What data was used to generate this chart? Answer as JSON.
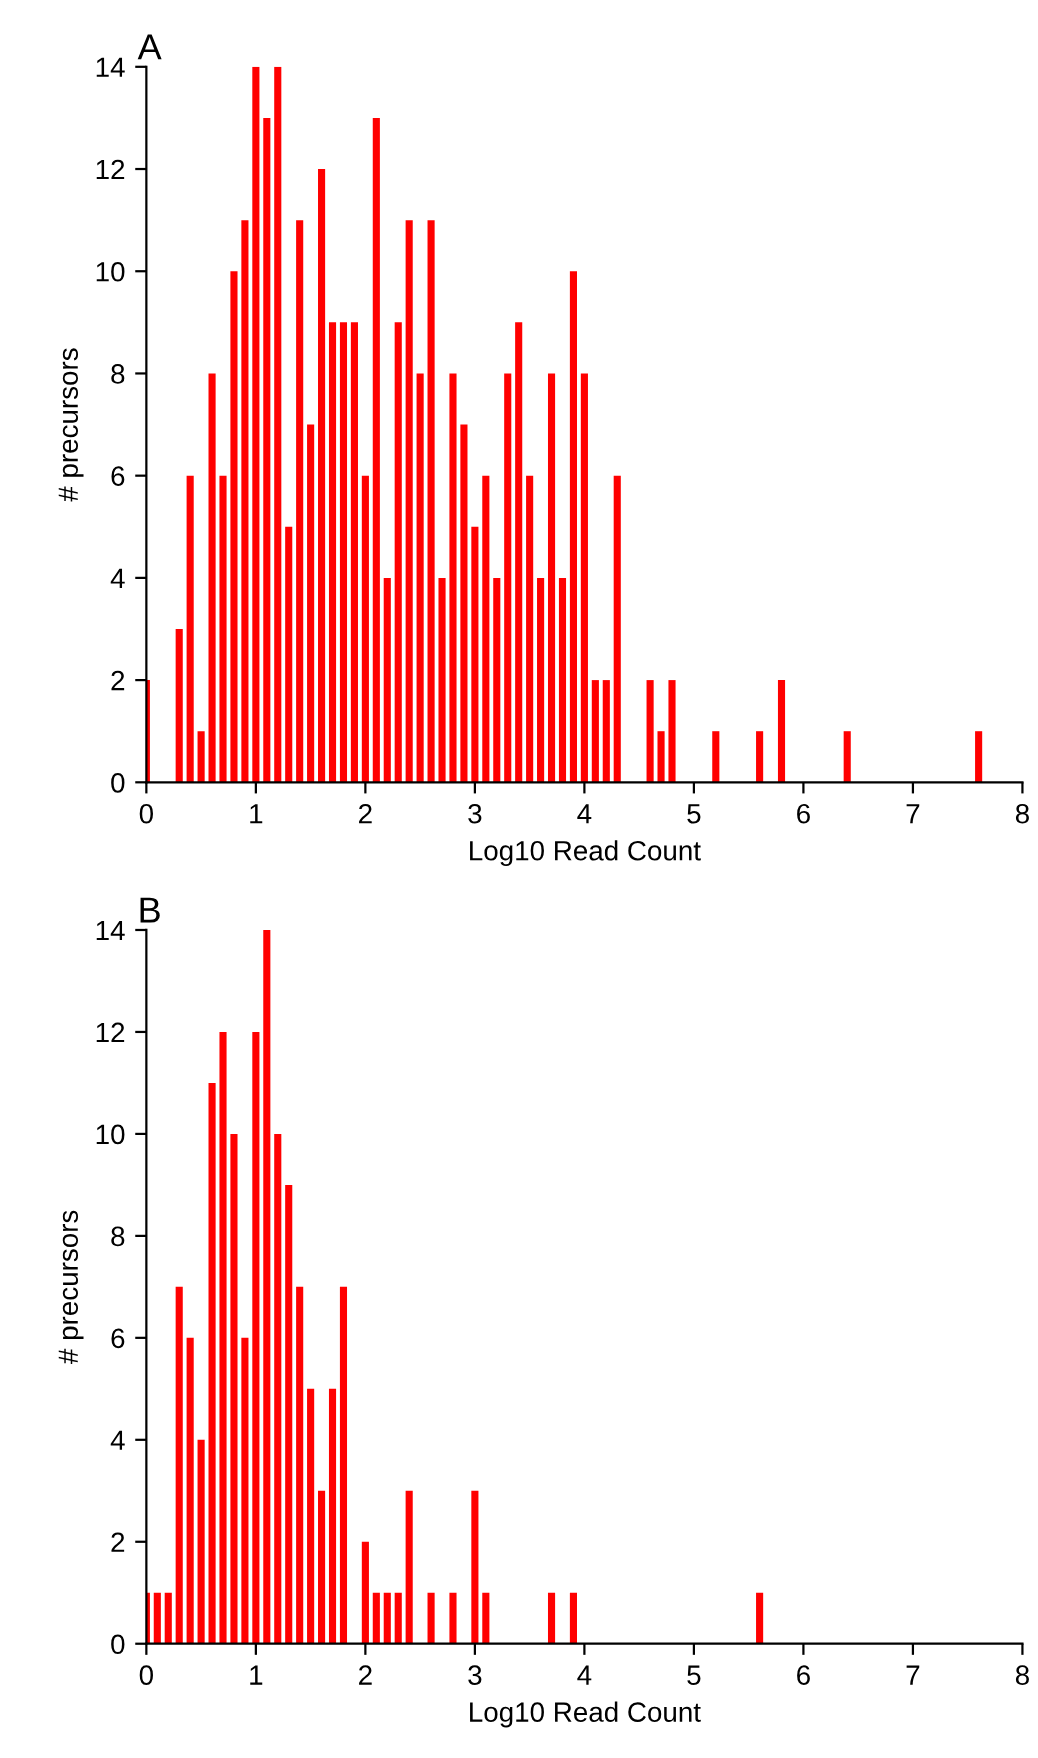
{
  "chart_data": [
    {
      "type": "histogram",
      "title": "A",
      "xlabel": "Log10 Read Count",
      "ylabel": "# precursors",
      "xlim": [
        0,
        8
      ],
      "xticks": [
        0,
        1,
        2,
        3,
        4,
        5,
        6,
        7,
        8
      ],
      "ylim": [
        0,
        14
      ],
      "yticks": [
        0,
        2,
        4,
        6,
        8,
        10,
        12,
        14
      ],
      "color": "#ff0000",
      "bins": [
        -0.05,
        0.05,
        0.15,
        0.25,
        0.35,
        0.45,
        0.55,
        0.65,
        0.75,
        0.85,
        0.95,
        1.05,
        1.15,
        1.25,
        1.35,
        1.45,
        1.55,
        1.65,
        1.75,
        1.85,
        1.95,
        2.05,
        2.15,
        2.25,
        2.35,
        2.45,
        2.55,
        2.65,
        2.75,
        2.85,
        2.95,
        3.05,
        3.15,
        3.25,
        3.35,
        3.45,
        3.55,
        3.65,
        3.75,
        3.85,
        3.95,
        4.05,
        4.15,
        4.25,
        4.35,
        4.45,
        4.55,
        4.65,
        4.75,
        4.85,
        4.95,
        5.05,
        5.15,
        5.25,
        5.35,
        5.45,
        5.55,
        5.65,
        5.75,
        5.85,
        5.95,
        6.05,
        6.15,
        6.25,
        6.35,
        6.45,
        6.55,
        6.65,
        6.75,
        6.85,
        6.95,
        7.05,
        7.15,
        7.25,
        7.35,
        7.45,
        7.55,
        7.65
      ],
      "values": [
        2,
        0,
        0,
        3,
        6,
        1,
        8,
        6,
        10,
        11,
        14,
        13,
        14,
        5,
        11,
        7,
        12,
        9,
        9,
        9,
        6,
        13,
        4,
        9,
        11,
        8,
        11,
        4,
        8,
        7,
        5,
        6,
        4,
        8,
        9,
        6,
        4,
        8,
        4,
        10,
        8,
        2,
        2,
        6,
        0,
        0,
        2,
        1,
        2,
        0,
        0,
        0,
        1,
        0,
        0,
        0,
        1,
        0,
        2,
        0,
        0,
        0,
        0,
        0,
        1,
        0,
        0,
        0,
        0,
        0,
        0,
        0,
        0,
        0,
        0,
        0,
        1
      ]
    },
    {
      "type": "histogram",
      "title": "B",
      "xlabel": "Log10 Read Count",
      "ylabel": "# precursors",
      "xlim": [
        0,
        8
      ],
      "xticks": [
        0,
        1,
        2,
        3,
        4,
        5,
        6,
        7,
        8
      ],
      "ylim": [
        0,
        14
      ],
      "yticks": [
        0,
        2,
        4,
        6,
        8,
        10,
        12,
        14
      ],
      "color": "#ff0000",
      "bins": [
        -0.05,
        0.05,
        0.15,
        0.25,
        0.35,
        0.45,
        0.55,
        0.65,
        0.75,
        0.85,
        0.95,
        1.05,
        1.15,
        1.25,
        1.35,
        1.45,
        1.55,
        1.65,
        1.75,
        1.85,
        1.95,
        2.05,
        2.15,
        2.25,
        2.35,
        2.45,
        2.55,
        2.65,
        2.75,
        2.85,
        2.95,
        3.05,
        3.15,
        3.25,
        3.35,
        3.45,
        3.55,
        3.65,
        3.75,
        3.85,
        3.95,
        4.05,
        4.15,
        4.25,
        4.35,
        4.45,
        4.55,
        4.65,
        4.75,
        4.85,
        4.95,
        5.05,
        5.15,
        5.25,
        5.35,
        5.45,
        5.55,
        5.65
      ],
      "values": [
        1,
        1,
        1,
        7,
        6,
        4,
        11,
        12,
        10,
        6,
        12,
        14,
        10,
        9,
        7,
        5,
        3,
        5,
        7,
        0,
        2,
        1,
        1,
        1,
        3,
        0,
        1,
        0,
        1,
        0,
        3,
        1,
        0,
        0,
        0,
        0,
        0,
        1,
        0,
        1,
        0,
        0,
        0,
        0,
        0,
        0,
        0,
        0,
        0,
        0,
        0,
        0,
        0,
        0,
        0,
        0,
        1
      ]
    }
  ]
}
